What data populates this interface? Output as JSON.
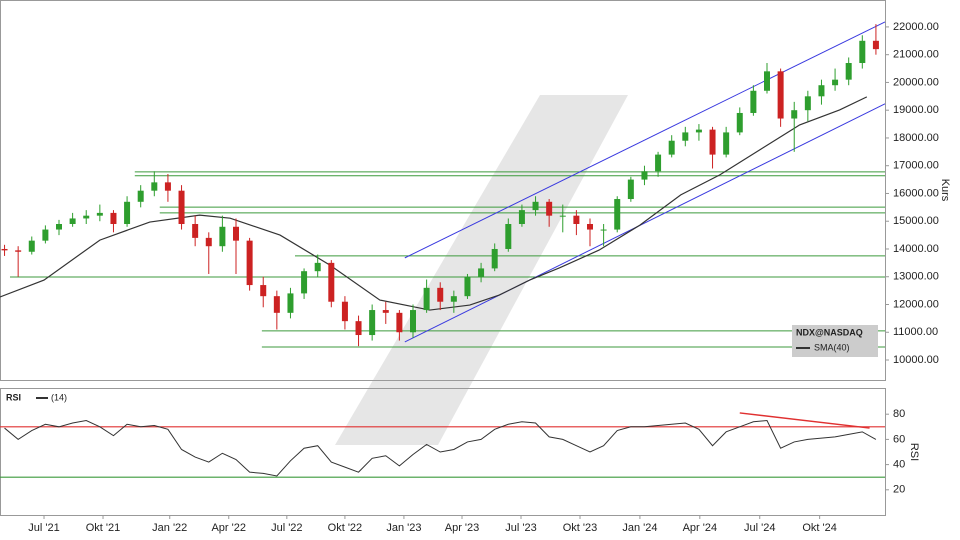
{
  "chart_data": [
    {
      "type": "candlestick",
      "name": "NDX@NASDAQ",
      "up_color": "#2e9e2e",
      "down_color": "#cc2222",
      "x": [
        1,
        4,
        7,
        10,
        13,
        16,
        19,
        22,
        25,
        28,
        31,
        34,
        37,
        40,
        43,
        46,
        49,
        52,
        55,
        58,
        61,
        64,
        67,
        70,
        73,
        76,
        79,
        82,
        85,
        88,
        91,
        94,
        97,
        100,
        103,
        106,
        109,
        112,
        115,
        118,
        121,
        124,
        127,
        130,
        133,
        136,
        139,
        142,
        145,
        148,
        151,
        154,
        157,
        160,
        163,
        166,
        169,
        172,
        175,
        178,
        181,
        184,
        187,
        190,
        193
      ],
      "ohlc": [
        [
          14000,
          14150,
          13750,
          13950
        ],
        [
          13950,
          14100,
          13000,
          13900
        ],
        [
          13900,
          14450,
          13800,
          14300
        ],
        [
          14300,
          14850,
          14200,
          14700
        ],
        [
          14700,
          15050,
          14500,
          14900
        ],
        [
          14900,
          15300,
          14800,
          15100
        ],
        [
          15100,
          15400,
          14900,
          15200
        ],
        [
          15200,
          15600,
          15000,
          15300
        ],
        [
          15300,
          15400,
          14600,
          14900
        ],
        [
          14900,
          15900,
          14800,
          15700
        ],
        [
          15700,
          16300,
          15500,
          16100
        ],
        [
          16100,
          16800,
          15900,
          16400
        ],
        [
          16400,
          16700,
          15700,
          16100
        ],
        [
          16100,
          16300,
          14700,
          14900
        ],
        [
          14900,
          15200,
          14100,
          14400
        ],
        [
          14400,
          14600,
          13100,
          14100
        ],
        [
          14100,
          15200,
          13900,
          14800
        ],
        [
          14800,
          15100,
          13100,
          14300
        ],
        [
          14300,
          14400,
          12500,
          12700
        ],
        [
          12700,
          13000,
          11900,
          12300
        ],
        [
          12300,
          12500,
          11100,
          11700
        ],
        [
          11700,
          12600,
          11500,
          12400
        ],
        [
          12400,
          13300,
          12200,
          13200
        ],
        [
          13200,
          13800,
          13000,
          13500
        ],
        [
          13500,
          13600,
          11900,
          12100
        ],
        [
          12100,
          12300,
          11100,
          11400
        ],
        [
          11400,
          11600,
          10500,
          10900
        ],
        [
          10900,
          12000,
          10700,
          11800
        ],
        [
          11800,
          12100,
          11300,
          11700
        ],
        [
          11700,
          11800,
          10700,
          11000
        ],
        [
          11000,
          12000,
          10800,
          11800
        ],
        [
          11800,
          12900,
          11700,
          12600
        ],
        [
          12600,
          12800,
          11800,
          12100
        ],
        [
          12100,
          12500,
          11700,
          12300
        ],
        [
          12300,
          13100,
          12200,
          13000
        ],
        [
          13000,
          13500,
          12800,
          13300
        ],
        [
          13300,
          14200,
          13200,
          14000
        ],
        [
          14000,
          15100,
          13900,
          14900
        ],
        [
          14900,
          15600,
          14800,
          15400
        ],
        [
          15400,
          15900,
          15200,
          15700
        ],
        [
          15700,
          15800,
          14800,
          15200
        ],
        [
          15200,
          15600,
          14600,
          15200
        ],
        [
          15200,
          15400,
          14500,
          14900
        ],
        [
          14900,
          15100,
          14100,
          14700
        ],
        [
          14700,
          14900,
          14100,
          14700
        ],
        [
          14700,
          15900,
          14600,
          15800
        ],
        [
          15800,
          16600,
          15700,
          16500
        ],
        [
          16500,
          17000,
          16300,
          16800
        ],
        [
          16800,
          17500,
          16600,
          17400
        ],
        [
          17400,
          18100,
          17300,
          17900
        ],
        [
          17900,
          18400,
          17700,
          18200
        ],
        [
          18200,
          18500,
          17900,
          18300
        ],
        [
          18300,
          18400,
          16900,
          17400
        ],
        [
          17400,
          18400,
          17300,
          18200
        ],
        [
          18200,
          19100,
          18100,
          18900
        ],
        [
          18900,
          19900,
          18800,
          19700
        ],
        [
          19700,
          20700,
          19600,
          20400
        ],
        [
          20400,
          20500,
          18400,
          18700
        ],
        [
          18700,
          19300,
          17500,
          19000
        ],
        [
          19000,
          19700,
          18600,
          19500
        ],
        [
          19500,
          20100,
          19200,
          19900
        ],
        [
          19900,
          20500,
          19700,
          20100
        ],
        [
          20100,
          20900,
          19900,
          20700
        ],
        [
          20700,
          21700,
          20500,
          21500
        ],
        [
          21500,
          22100,
          21000,
          21200
        ]
      ],
      "sma": {
        "name": "SMA(40)",
        "color": "#333333",
        "x": [
          0,
          9.7,
          22,
          33,
          44,
          50.7,
          61.7,
          72.7,
          83.7,
          94.7,
          103.5,
          110,
          116.7,
          123.3,
          132,
          141,
          150,
          158.6,
          167.4,
          176.2,
          185,
          191
        ],
        "values": [
          12270,
          12880,
          14320,
          14970,
          15220,
          15110,
          14500,
          13420,
          12160,
          11800,
          11980,
          12340,
          12880,
          13320,
          13960,
          14860,
          15950,
          16670,
          17570,
          18470,
          19010,
          19480
        ]
      },
      "trendlines": [
        {
          "color": "#3a3adf",
          "x": [
            89.2,
            195
          ],
          "values": [
            13680,
            22180
          ]
        },
        {
          "color": "#3a3adf",
          "x": [
            89.2,
            195
          ],
          "values": [
            10650,
            19230
          ]
        }
      ],
      "levels": {
        "color": "#3c9a3c",
        "values": [
          16780,
          16640,
          15510,
          15300,
          13750,
          12990,
          11050,
          10470
        ],
        "start": [
          29.7,
          29.7,
          35.2,
          35.2,
          65,
          2.2,
          57.7,
          57.7
        ]
      },
      "xlim": [
        0,
        195
      ],
      "ylim": [
        9460,
        22970
      ],
      "yticks": [
        {
          "value": 10000,
          "label": "10000.00"
        },
        {
          "value": 11000,
          "label": "11000.00"
        },
        {
          "value": 12000,
          "label": "12000.00"
        },
        {
          "value": 13000,
          "label": "13000.00"
        },
        {
          "value": 14000,
          "label": "14000.00"
        },
        {
          "value": 15000,
          "label": "15000.00"
        },
        {
          "value": 16000,
          "label": "16000.00"
        },
        {
          "value": 17000,
          "label": "17000.00"
        },
        {
          "value": 18000,
          "label": "18000.00"
        },
        {
          "value": 19000,
          "label": "19000.00"
        },
        {
          "value": 20000,
          "label": "20000.00"
        },
        {
          "value": 21000,
          "label": "21000.00"
        },
        {
          "value": 22000,
          "label": "22000.00"
        }
      ],
      "ylabel": "Kurs",
      "legend": "bottom-right",
      "legend_color": "#cccccc"
    },
    {
      "type": "line",
      "name": "RSI",
      "params": "(14)",
      "color": "#333333",
      "x": [
        1,
        4,
        7,
        10,
        13,
        16,
        19,
        22,
        25,
        28,
        31,
        34,
        37,
        40,
        43,
        46,
        49,
        52,
        55,
        58,
        61,
        64,
        67,
        70,
        73,
        76,
        79,
        82,
        85,
        88,
        91,
        94,
        97,
        100,
        103,
        106,
        109,
        112,
        115,
        118,
        121,
        124,
        127,
        130,
        133,
        136,
        139,
        142,
        145,
        148,
        151,
        154,
        157,
        160,
        163,
        166,
        169,
        172,
        175,
        178,
        181,
        184,
        187,
        190,
        193
      ],
      "values": [
        69,
        60,
        67,
        72,
        70,
        73,
        75,
        70,
        63,
        72,
        70,
        71,
        68,
        52,
        46,
        42,
        49,
        44,
        34,
        33,
        31,
        43,
        53,
        55,
        42,
        38,
        34,
        45,
        47,
        39,
        48,
        56,
        50,
        52,
        58,
        60,
        68,
        72,
        74,
        73,
        62,
        60,
        55,
        50,
        55,
        67,
        70,
        70,
        71,
        72,
        73,
        68,
        55,
        66,
        70,
        74,
        75,
        53,
        58,
        60,
        61,
        62,
        64,
        66,
        60
      ],
      "hlines": [
        {
          "value": 70,
          "color": "#e03030"
        },
        {
          "value": 30,
          "color": "#3c9a3c"
        }
      ],
      "trendline": {
        "color": "#e03030",
        "x": [
          163,
          191.6
        ],
        "values": [
          81,
          69
        ]
      },
      "xlim": [
        0,
        195
      ],
      "ylim": [
        0,
        100
      ],
      "yticks": [
        20,
        40,
        60,
        80
      ],
      "ylabel": "RSI",
      "xticks": [
        {
          "value": 9.7,
          "label": "Jul '21"
        },
        {
          "value": 22.7,
          "label": "Okt '21"
        },
        {
          "value": 37.4,
          "label": "Jan '22"
        },
        {
          "value": 50.4,
          "label": "Apr '22"
        },
        {
          "value": 63.2,
          "label": "Jul '22"
        },
        {
          "value": 76.0,
          "label": "Okt '22"
        },
        {
          "value": 89.0,
          "label": "Jan '23"
        },
        {
          "value": 101.8,
          "label": "Apr '23"
        },
        {
          "value": 114.8,
          "label": "Jul '23"
        },
        {
          "value": 127.8,
          "label": "Okt '23"
        },
        {
          "value": 141.0,
          "label": "Jan '24"
        },
        {
          "value": 154.2,
          "label": "Apr '24"
        },
        {
          "value": 167.4,
          "label": "Jul '24"
        },
        {
          "value": 180.6,
          "label": "Okt '24"
        }
      ]
    }
  ]
}
